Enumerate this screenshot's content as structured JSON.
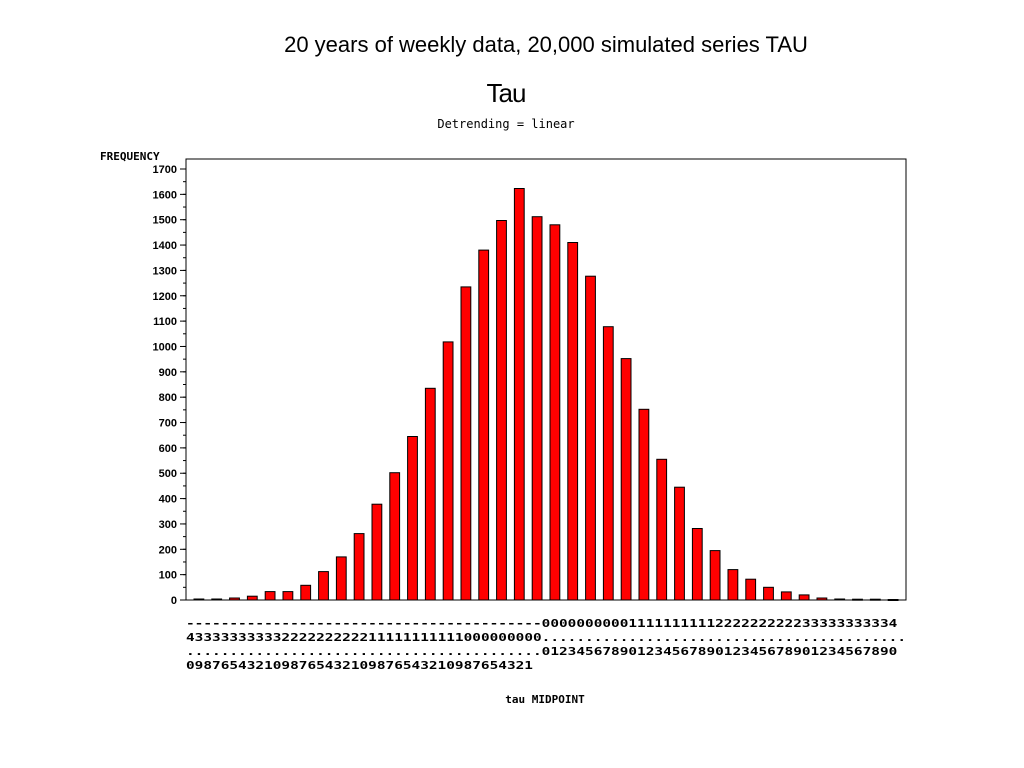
{
  "slide_title": "20 years of weekly data, 20,000 simulated series TAU",
  "chart_data": {
    "type": "bar",
    "title": "Tau",
    "subtitle": "Detrending = linear",
    "ylabel": "FREQUENCY",
    "xlabel": "tau MIDPOINT",
    "ylim": [
      0,
      1700
    ],
    "yticks": [
      0,
      100,
      200,
      300,
      400,
      500,
      600,
      700,
      800,
      900,
      1000,
      1100,
      1200,
      1300,
      1400,
      1500,
      1600,
      1700
    ],
    "bar_color": "#ff0000",
    "categories": [
      "-4.0",
      "-3.9",
      "-3.8",
      "-3.7",
      "-3.6",
      "-3.5",
      "-3.4",
      "-3.3",
      "-3.2",
      "-3.1",
      "-3.0",
      "-2.9",
      "-2.8",
      "-2.7",
      "-2.6",
      "-2.5",
      "-2.4",
      "-2.3",
      "-2.2",
      "-2.1",
      "-2.0",
      "-1.9",
      "-1.8",
      "-1.7",
      "-1.6",
      "-1.5",
      "-1.4",
      "-1.3",
      "-1.2",
      "-1.1",
      "-1.0",
      "-0.9",
      "-0.8",
      "-0.7",
      "-0.6",
      "-0.5",
      "-0.4",
      "-0.3",
      "-0.2",
      "-0.1"
    ],
    "values": [
      4,
      4,
      8,
      15,
      33,
      33,
      58,
      112,
      170,
      262,
      378,
      502,
      645,
      835,
      1018,
      1235,
      1380,
      1497,
      1623,
      1512,
      1480,
      1410,
      1277,
      1078,
      952,
      752,
      555,
      445,
      282,
      195,
      120,
      82,
      50,
      32,
      20,
      8,
      4,
      3,
      3,
      2
    ],
    "x_tick_rows": [
      "-----------------------------------------00000000001111111111222222222233333333334",
      "43333333333222222222211111111111000000000..........................................",
      ".........................................01234567890123456789012345678901234567890",
      "0987654321098765432109876543210987654321"
    ]
  }
}
